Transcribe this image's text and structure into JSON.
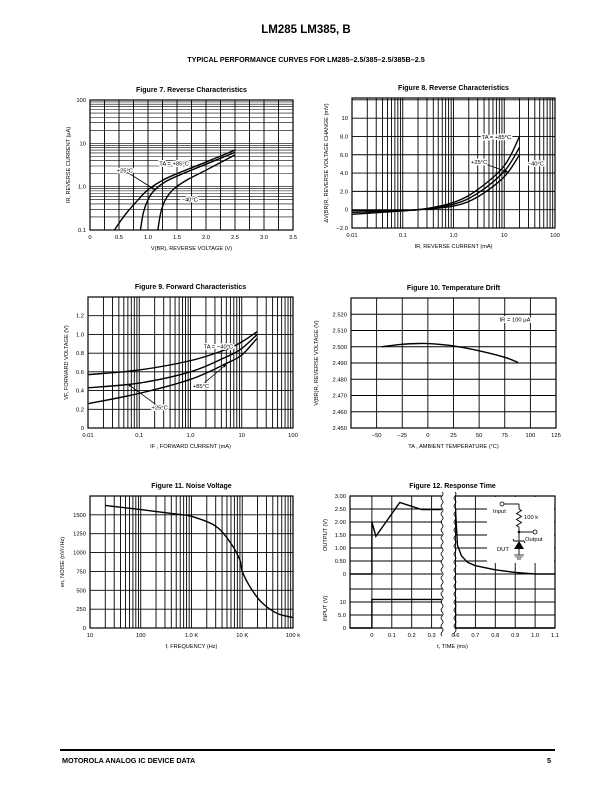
{
  "header": {
    "title": "LM285 LM385, B",
    "subtitle": "TYPICAL PERFORMANCE CURVES FOR LM285–2.5/385–2.5/385B–2.5"
  },
  "footer": {
    "left": "MOTOROLA ANALOG IC DEVICE DATA",
    "page": "5"
  },
  "chart_data": [
    {
      "type": "line",
      "title": "Figure 7. Reverse Characteristics",
      "xlabel": "V(BR), REVERSE VOLTAGE (V)",
      "ylabel": "IR, REVERSE CURRENT (μA)",
      "xscale": "linear",
      "yscale": "log",
      "xlim": [
        0,
        3.5
      ],
      "ylim": [
        0.1,
        100
      ],
      "xgrid_step": 0.25,
      "xticks": [
        0,
        0.5,
        1,
        1.5,
        2,
        2.5,
        3,
        3.5
      ],
      "xtick_labels": [
        "0",
        "0.5",
        "1.0",
        "1.5",
        "2.0",
        "2.5",
        "3.0",
        "3.5"
      ],
      "yticks": [
        0.1,
        1,
        10,
        100
      ],
      "ytick_labels": [
        "0.1",
        "1.0",
        "10",
        "100"
      ],
      "grid": true,
      "series": [
        {
          "name": "+85°C",
          "points": [
            [
              0.42,
              0.1
            ],
            [
              0.6,
              0.22
            ],
            [
              0.8,
              0.45
            ],
            [
              1.0,
              0.85
            ],
            [
              1.25,
              1.4
            ],
            [
              1.5,
              2.0
            ],
            [
              2.0,
              3.7
            ],
            [
              2.5,
              7.0
            ]
          ]
        },
        {
          "name": "+25°C",
          "points": [
            [
              0.87,
              0.1
            ],
            [
              0.92,
              0.25
            ],
            [
              1.0,
              0.5
            ],
            [
              1.1,
              0.8
            ],
            [
              1.3,
              1.3
            ],
            [
              1.6,
              2.0
            ],
            [
              2.0,
              3.3
            ],
            [
              2.5,
              6.2
            ]
          ]
        },
        {
          "name": "-40°C",
          "points": [
            [
              1.17,
              0.1
            ],
            [
              1.22,
              0.25
            ],
            [
              1.3,
              0.5
            ],
            [
              1.45,
              0.9
            ],
            [
              1.7,
              1.5
            ],
            [
              2.0,
              2.4
            ],
            [
              2.5,
              5.4
            ]
          ]
        }
      ],
      "annotations": [
        {
          "text": "TA = +85°C",
          "at": [
            1.45,
            3.1
          ]
        },
        {
          "text": "+25°C",
          "at": [
            0.6,
            2.1
          ],
          "arrow_to": [
            1.12,
            0.85
          ]
        },
        {
          "text": "−40°C",
          "at": [
            1.72,
            0.45
          ]
        }
      ]
    },
    {
      "type": "line",
      "title": "Figure 8. Reverse Characteristics",
      "xlabel": "IR, REVERSE CURRENT (mA)",
      "ylabel": "ΔV(BR)R, REVERSE VOLTAGE CHANGE (mV)",
      "xscale": "log",
      "yscale": "linear",
      "xlim": [
        0.01,
        100
      ],
      "ylim": [
        -2,
        12.2
      ],
      "ygrid_step": 2,
      "xticks": [
        0.01,
        0.1,
        1,
        10,
        100
      ],
      "xtick_labels": [
        "0.01",
        "0.1",
        "1.0",
        "10",
        "100"
      ],
      "yticks": [
        -2,
        0,
        2,
        4,
        6,
        8,
        10
      ],
      "ytick_labels": [
        "−2.0",
        "0",
        "2.0",
        "4.0",
        "6.0",
        "8.0",
        "10"
      ],
      "grid": true,
      "series": [
        {
          "name": "+85°C",
          "points": [
            [
              0.01,
              -0.1
            ],
            [
              0.05,
              -0.07
            ],
            [
              0.2,
              0
            ],
            [
              1,
              0.8
            ],
            [
              3,
              2.2
            ],
            [
              10,
              4.8
            ],
            [
              20,
              8.0
            ]
          ]
        },
        {
          "name": "+25°C",
          "points": [
            [
              0.01,
              -0.3
            ],
            [
              0.05,
              -0.15
            ],
            [
              0.2,
              0
            ],
            [
              1,
              0.6
            ],
            [
              3,
              1.8
            ],
            [
              10,
              4.2
            ],
            [
              20,
              6.8
            ]
          ]
        },
        {
          "name": "-40°C",
          "points": [
            [
              0.01,
              -0.5
            ],
            [
              0.05,
              -0.25
            ],
            [
              0.2,
              0
            ],
            [
              1,
              0.4
            ],
            [
              3,
              1.4
            ],
            [
              10,
              3.6
            ],
            [
              20,
              6.0
            ]
          ]
        }
      ],
      "annotations": [
        {
          "text": "TA = +85°C",
          "at": [
            7,
            7.7
          ]
        },
        {
          "text": "+25°C",
          "at": [
            3.2,
            5.0
          ],
          "arrow_to": [
            12,
            4.1
          ]
        },
        {
          "text": "−40°C",
          "at": [
            42,
            4.8
          ]
        }
      ]
    },
    {
      "type": "line",
      "title": "Figure 9. Forward Characteristics",
      "xlabel": "IF , FORWARD CURRENT (mA)",
      "ylabel": "VF, FORWARD VOLTAGE (V)",
      "xscale": "log",
      "yscale": "linear",
      "xlim": [
        0.01,
        100
      ],
      "ylim": [
        0,
        1.4
      ],
      "ygrid_step": 0.2,
      "xticks": [
        0.01,
        0.1,
        1,
        10,
        100
      ],
      "xtick_labels": [
        "0.01",
        "0.1",
        "1.0",
        "10",
        "100"
      ],
      "yticks": [
        0,
        0.2,
        0.4,
        0.6,
        0.8,
        1.0,
        1.2
      ],
      "ytick_labels": [
        "0",
        "0.2",
        "0.4",
        "0.6",
        "0.8",
        "1.0",
        "1.2"
      ],
      "grid": true,
      "series": [
        {
          "name": "-40°C",
          "points": [
            [
              0.01,
              0.57
            ],
            [
              0.1,
              0.62
            ],
            [
              1,
              0.72
            ],
            [
              5,
              0.84
            ],
            [
              10,
              0.92
            ],
            [
              20,
              1.03
            ]
          ]
        },
        {
          "name": "+25°C",
          "points": [
            [
              0.01,
              0.43
            ],
            [
              0.1,
              0.48
            ],
            [
              1,
              0.6
            ],
            [
              5,
              0.76
            ],
            [
              10,
              0.85
            ],
            [
              20,
              1.0
            ]
          ]
        },
        {
          "name": "+85°C",
          "points": [
            [
              0.01,
              0.26
            ],
            [
              0.1,
              0.37
            ],
            [
              1,
              0.52
            ],
            [
              5,
              0.69
            ],
            [
              10,
              0.78
            ],
            [
              20,
              0.96
            ]
          ]
        }
      ],
      "annotations": [
        {
          "text": "TA = −40°C",
          "at": [
            3.5,
            0.85
          ]
        },
        {
          "text": "+85°C",
          "at": [
            1.6,
            0.43
          ],
          "arrow_to": [
            5,
            0.68
          ]
        },
        {
          "text": "+25°C",
          "at": [
            0.25,
            0.2
          ],
          "arrow_to": [
            0.06,
            0.47
          ]
        }
      ]
    },
    {
      "type": "line",
      "title": "Figure 10. Temperature Drift",
      "xlabel": "TA , AMBIENT TEMPERATURE (°C)",
      "ylabel": "V(BR)R, REVERSE VOLTAGE (V)",
      "xscale": "linear",
      "yscale": "linear",
      "xlim": [
        -75,
        125
      ],
      "ylim": [
        2.45,
        2.53
      ],
      "xgrid_step": 25,
      "ygrid_step": 0.01,
      "xticks": [
        -50,
        -25,
        0,
        25,
        50,
        75,
        100,
        125
      ],
      "xtick_labels": [
        "−50",
        "−25",
        "0",
        "25",
        "50",
        "75",
        "100",
        "125"
      ],
      "yticks": [
        2.45,
        2.46,
        2.47,
        2.48,
        2.49,
        2.5,
        2.51,
        2.52
      ],
      "ytick_labels": [
        "2.450",
        "2.460",
        "2.470",
        "2.480",
        "2.490",
        "2.500",
        "2.510",
        "2.520"
      ],
      "grid": true,
      "series": [
        {
          "name": "IR = 100 μA",
          "points": [
            [
              -45,
              2.5
            ],
            [
              -25,
              2.5015
            ],
            [
              -8,
              2.502
            ],
            [
              5,
              2.5018
            ],
            [
              25,
              2.5005
            ],
            [
              50,
              2.4975
            ],
            [
              75,
              2.4935
            ],
            [
              88,
              2.4903
            ]
          ]
        }
      ],
      "annotations": [
        {
          "text": "IR = 100 μA",
          "at": [
            85,
            2.5155
          ]
        }
      ]
    },
    {
      "type": "line",
      "title": "Figure 11. Noise Voltage",
      "xlabel": "f, FREQUENCY (Hz)",
      "ylabel": "en, NOISE (nV/√Hz)",
      "xscale": "log",
      "yscale": "linear",
      "xlim": [
        10,
        100000
      ],
      "ylim": [
        0,
        1750
      ],
      "ygrid_step": 250,
      "xticks": [
        10,
        100,
        1000,
        10000,
        100000
      ],
      "xtick_labels": [
        "10",
        "100",
        "1.0 K",
        "10 K",
        "100 k"
      ],
      "yticks": [
        0,
        250,
        500,
        750,
        1000,
        1250,
        1500
      ],
      "ytick_labels": [
        "0",
        "250",
        "500",
        "750",
        "1000",
        "1250",
        "1500"
      ],
      "grid": true,
      "series": [
        {
          "name": "noise",
          "points": [
            [
              20,
              1625
            ],
            [
              100,
              1570
            ],
            [
              500,
              1510
            ],
            [
              1000,
              1480
            ],
            [
              3000,
              1350
            ],
            [
              6000,
              1120
            ],
            [
              9000,
              900
            ],
            [
              10000,
              750
            ],
            [
              15000,
              520
            ],
            [
              25000,
              330
            ],
            [
              50000,
              190
            ],
            [
              100000,
              140
            ]
          ]
        }
      ],
      "annotations": []
    },
    {
      "type": "line",
      "title": "Figure 12. Response Time",
      "xlabel": "t, TIME (ms)",
      "xscale": "linear",
      "xlim": [
        -0.11,
        1.1
      ],
      "x_break": [
        0.35,
        0.6
      ],
      "xticks": [
        0,
        0.1,
        0.2,
        0.3,
        0.6,
        0.7,
        0.8,
        0.9,
        1.0,
        1.1
      ],
      "xtick_labels": [
        "0",
        "0.1",
        "0.2",
        "0.3",
        "0.6",
        "0.7",
        "0.8",
        "0.9",
        "1.0",
        "1.1"
      ],
      "grid": true,
      "panels": [
        {
          "name": "output",
          "ylabel": "OUTPUT (V)",
          "yscale": "linear",
          "ylim": [
            0,
            3
          ],
          "ygrid_step": 0.5,
          "yticks": [
            0,
            0.5,
            1,
            1.5,
            2,
            2.5,
            3
          ],
          "ytick_labels": [
            "0",
            "0.50",
            "1.00",
            "1.50",
            "2.00",
            "2.50",
            "3.00"
          ],
          "series": [
            {
              "name": "output",
              "points": [
                [
                  -0.11,
                  0
                ],
                [
                  0,
                  0
                ],
                [
                  0,
                  2.0
                ],
                [
                  0.02,
                  1.45
                ],
                [
                  0.14,
                  2.75
                ],
                [
                  0.25,
                  2.48
                ],
                [
                  0.35,
                  2.48
                ],
                [
                  0.6,
                  2.48
                ],
                [
                  0.61,
                  1.1
                ],
                [
                  0.63,
                  0.7
                ],
                [
                  0.66,
                  0.45
                ],
                [
                  0.7,
                  0.32
                ],
                [
                  0.8,
                  0.16
                ],
                [
                  0.9,
                  0.06
                ],
                [
                  1.0,
                  0.0
                ],
                [
                  1.1,
                  0.0
                ]
              ]
            }
          ]
        },
        {
          "name": "input",
          "ylabel": "INPUT (V)",
          "yscale": "linear",
          "ylim": [
            0,
            15
          ],
          "ygrid_step": 5,
          "yticks": [
            0,
            5,
            10
          ],
          "ytick_labels": [
            "0",
            "5.0",
            "10"
          ],
          "series": [
            {
              "name": "input",
              "points": [
                [
                  -0.11,
                  0
                ],
                [
                  0,
                  0
                ],
                [
                  0,
                  11
                ],
                [
                  0.35,
                  11
                ],
                [
                  0.6,
                  11
                ],
                [
                  0.6,
                  0
                ],
                [
                  1.1,
                  0
                ]
              ]
            }
          ]
        }
      ],
      "circuit": {
        "input_label": "Input",
        "resistor_label": "100 k",
        "output_label": "Output",
        "dut_label": "DUT"
      },
      "annotations": []
    }
  ]
}
